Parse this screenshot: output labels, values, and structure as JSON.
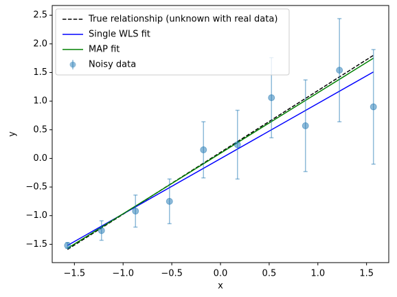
{
  "chart_data": {
    "type": "line",
    "xlabel": "x",
    "ylabel": "y",
    "xlim": [
      -1.728,
      1.728
    ],
    "ylim": [
      -1.82,
      2.67
    ],
    "xticks": [
      {
        "value": -1.5,
        "label": "−1.5"
      },
      {
        "value": -1.0,
        "label": "−1.0"
      },
      {
        "value": -0.5,
        "label": "−0.5"
      },
      {
        "value": 0,
        "label": "0.0"
      },
      0.5,
      {
        "value": 1.0,
        "label": "1.0"
      },
      1.5
    ],
    "yticks": [
      {
        "value": -1.5,
        "label": "−1.5"
      },
      {
        "value": -1.0,
        "label": "−1.0"
      },
      {
        "value": -0.5,
        "label": "−0.5"
      },
      {
        "value": 0,
        "label": "0.0"
      },
      0.5,
      {
        "value": 1.0,
        "label": "1.0"
      },
      1.5,
      {
        "value": 2.0,
        "label": "2.0"
      },
      2.5
    ],
    "legend": "upper left",
    "series": [
      {
        "name": "True relationship (unknown with real data)",
        "color": "#000000",
        "dash": true,
        "x": [
          -1.5708,
          1.5708
        ],
        "values": [
          -1.59,
          1.8
        ]
      },
      {
        "name": "Single WLS fit",
        "color": "#0000ff",
        "x": [
          -1.5708,
          1.5708
        ],
        "values": [
          -1.52,
          1.51
        ]
      },
      {
        "name": "MAP fit",
        "color": "#008000",
        "x": [
          -1.5708,
          1.5708
        ],
        "values": [
          -1.57,
          1.75
        ]
      },
      {
        "name": "Noisy data",
        "color": "#1f77b4",
        "errorbar": true,
        "x": [
          -1.5708,
          -1.2217,
          -0.8727,
          -0.5236,
          -0.1745,
          0.1745,
          0.5236,
          0.8727,
          1.2217,
          1.5708
        ],
        "values": [
          -1.52,
          -1.26,
          -0.92,
          -0.75,
          0.15,
          0.24,
          1.06,
          0.57,
          1.54,
          0.9
        ],
        "errors": [
          0.05,
          0.17,
          0.28,
          0.39,
          0.49,
          0.6,
          0.7,
          0.8,
          0.9,
          1.0
        ]
      }
    ]
  }
}
